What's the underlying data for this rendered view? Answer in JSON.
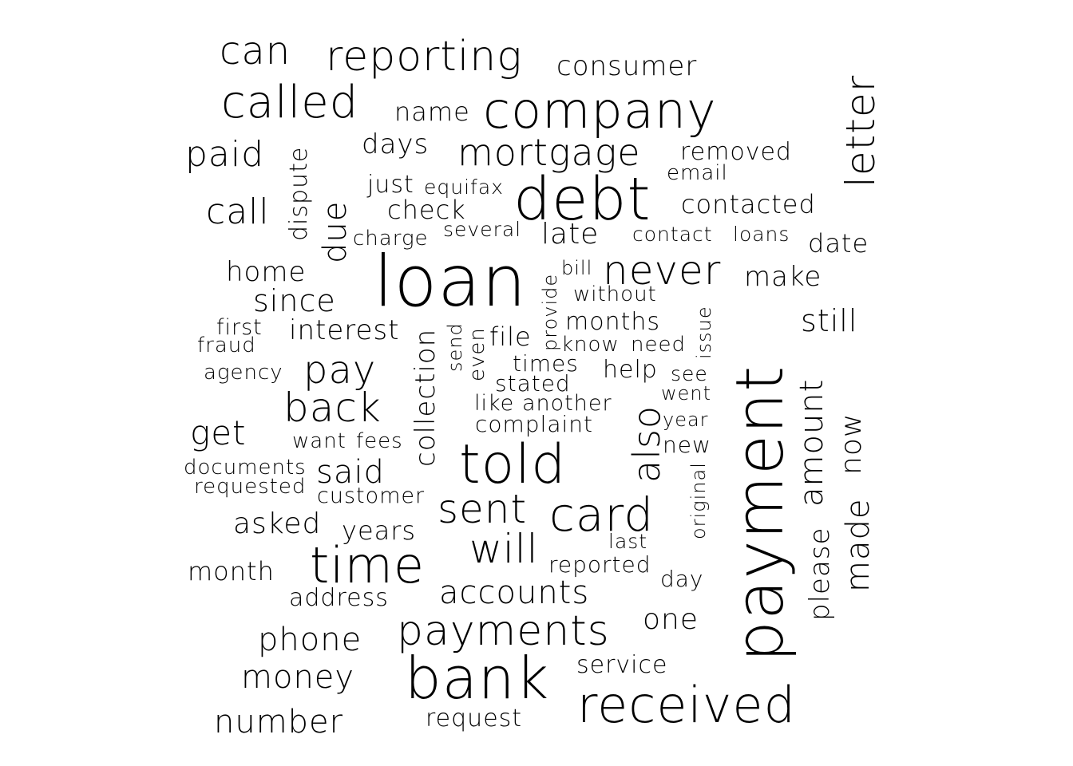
{
  "words": [
    "loan",
    "payment",
    "debt",
    "company",
    "bank",
    "told",
    "received",
    "time",
    "payments",
    "card",
    "called",
    "reporting",
    "sent",
    "will",
    "never",
    "back",
    "letter",
    "pay",
    "mortgage",
    "can",
    "also",
    "paid",
    "call",
    "accounts",
    "get",
    "phone",
    "number",
    "collection",
    "due",
    "amount",
    "money",
    "made",
    "said",
    "since",
    "interest",
    "home",
    "now",
    "make",
    "consumer",
    "contacted",
    "days",
    "asked",
    "date",
    "check",
    "dispute",
    "late",
    "still",
    "please",
    "name",
    "removed",
    "one",
    "years",
    "help",
    "month",
    "months",
    "address",
    "just",
    "service",
    "file",
    "times",
    "reported",
    "complaint",
    "email",
    "stated",
    "request",
    "customer",
    "documents",
    "equifax",
    "agency",
    "even",
    "charge",
    "requested",
    "several",
    "first",
    "another",
    "like",
    "want",
    "fees",
    "day",
    "know",
    "need",
    "without",
    "contact",
    "loans",
    "new",
    "fraud",
    "see",
    "last",
    "went",
    "year",
    "issue",
    "send",
    "provide",
    "bill",
    "original"
  ]
}
